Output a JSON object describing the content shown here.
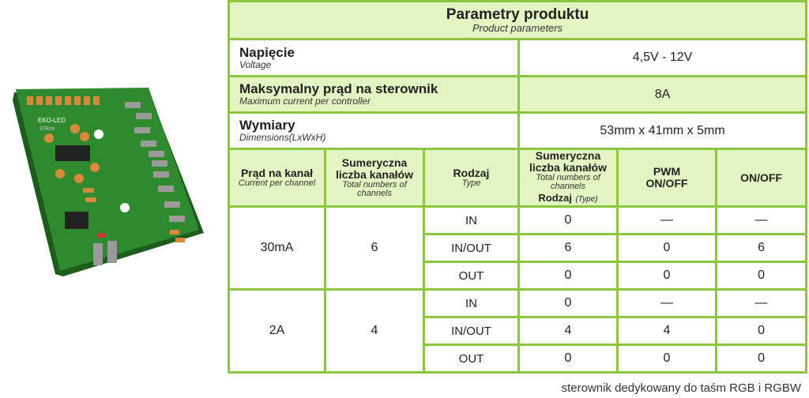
{
  "title": {
    "pl": "Parametry produktu",
    "en": "Product parameters"
  },
  "specs": [
    {
      "pl": "Napięcie",
      "en": "Voltage",
      "value": "4,5V - 12V"
    },
    {
      "pl": "Maksymalny prąd na sterownik",
      "en": "Maximum current per controller",
      "value": "8A"
    },
    {
      "pl": "Wymiary",
      "en": "Dimensions(LxWxH)",
      "value": "53mm x 41mm x 5mm"
    }
  ],
  "headers": {
    "current": {
      "pl": "Prąd na kanał",
      "en": "Current per channel"
    },
    "total": {
      "pl": "Sumeryczna liczba kanałów",
      "en": "Total numbers of channels"
    },
    "type": {
      "pl": "Rodzaj",
      "en": "Type"
    },
    "total2": {
      "pl": "Sumeryczna liczba kanałów",
      "en": "Total numbers of channels",
      "pl2": "Rodzaj",
      "en2": "(Type)"
    },
    "pwm": "PWM ON/OFF",
    "onoff": "ON/OFF"
  },
  "groups": [
    {
      "current": "30mA",
      "total": "6",
      "rows": [
        {
          "type": "IN",
          "count": "0",
          "pwm": "—",
          "onoff": "—"
        },
        {
          "type": "IN/OUT",
          "count": "6",
          "pwm": "0",
          "onoff": "6"
        },
        {
          "type": "OUT",
          "count": "0",
          "pwm": "0",
          "onoff": "0"
        }
      ]
    },
    {
      "current": "2A",
      "total": "4",
      "rows": [
        {
          "type": "IN",
          "count": "0",
          "pwm": "—",
          "onoff": "—"
        },
        {
          "type": "IN/OUT",
          "count": "4",
          "pwm": "4",
          "onoff": "0"
        },
        {
          "type": "OUT",
          "count": "0",
          "pwm": "0",
          "onoff": "0"
        }
      ]
    }
  ],
  "pcb": {
    "brand": "EKO-LED",
    "model": "STR19"
  },
  "footer": "sterownik dedykowany do taśm RGB i RGBW",
  "colors": {
    "border": "#8cc63f",
    "fill": "#e4f5c4",
    "pcb": "#2f8a2f"
  }
}
